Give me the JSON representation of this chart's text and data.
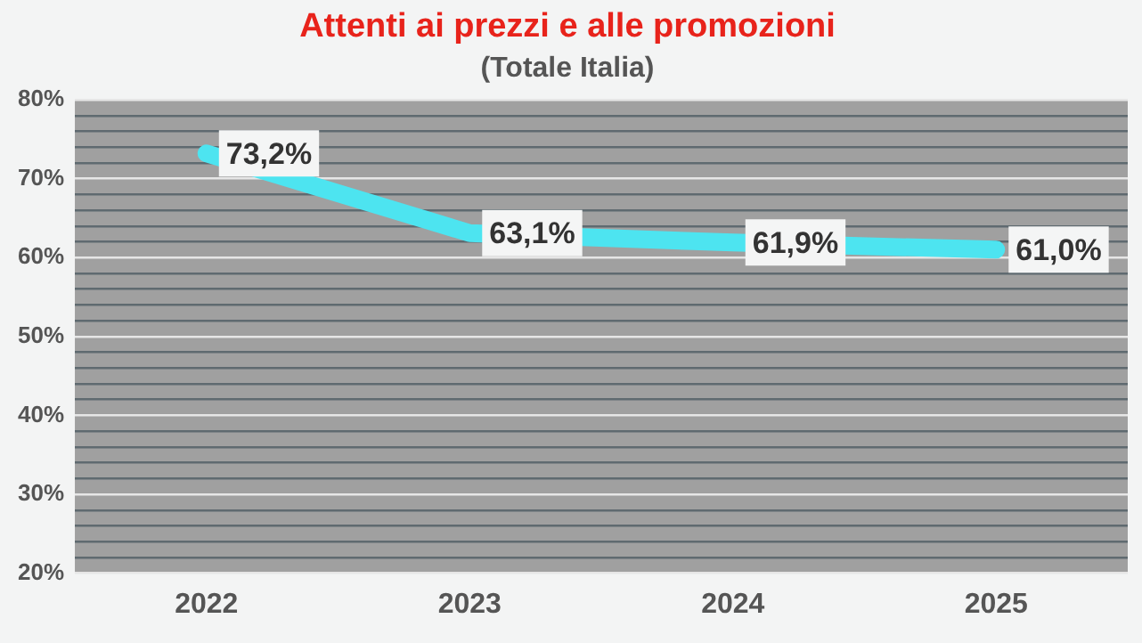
{
  "chart_data": {
    "type": "line",
    "title": "Attenti ai prezzi e alle promozioni",
    "subtitle": "(Totale Italia)",
    "categories": [
      "2022",
      "2023",
      "2024",
      "2025"
    ],
    "series": [
      {
        "color": "#4de4f0",
        "values": [
          73.2,
          63.1,
          61.9,
          61.0
        ],
        "value_labels": [
          "73,2%",
          "63,1%",
          "61,9%",
          "61,0%"
        ]
      }
    ],
    "ylim": [
      20,
      80
    ],
    "yticks": [
      {
        "value": 20,
        "label": "20%"
      },
      {
        "value": 22,
        "label": null
      },
      {
        "value": 24,
        "label": null
      },
      {
        "value": 26,
        "label": null
      },
      {
        "value": 28,
        "label": null
      },
      {
        "value": 30,
        "label": "30%"
      },
      {
        "value": 32,
        "label": null
      },
      {
        "value": 34,
        "label": null
      },
      {
        "value": 36,
        "label": null
      },
      {
        "value": 38,
        "label": null
      },
      {
        "value": 40,
        "label": "40%"
      },
      {
        "value": 42,
        "label": null
      },
      {
        "value": 44,
        "label": null
      },
      {
        "value": 46,
        "label": null
      },
      {
        "value": 48,
        "label": null
      },
      {
        "value": 50,
        "label": "50%"
      },
      {
        "value": 52,
        "label": null
      },
      {
        "value": 54,
        "label": null
      },
      {
        "value": 56,
        "label": null
      },
      {
        "value": 58,
        "label": null
      },
      {
        "value": 60,
        "label": "60%"
      },
      {
        "value": 62,
        "label": null
      },
      {
        "value": 64,
        "label": null
      },
      {
        "value": 66,
        "label": null
      },
      {
        "value": 68,
        "label": null
      },
      {
        "value": 70,
        "label": "70%"
      },
      {
        "value": 72,
        "label": null
      },
      {
        "value": 74,
        "label": null
      },
      {
        "value": 76,
        "label": null
      },
      {
        "value": 78,
        "label": null
      },
      {
        "value": 80,
        "label": "80%"
      }
    ],
    "grid": "y",
    "legend": false,
    "marker": "none",
    "line_style": "solid"
  }
}
